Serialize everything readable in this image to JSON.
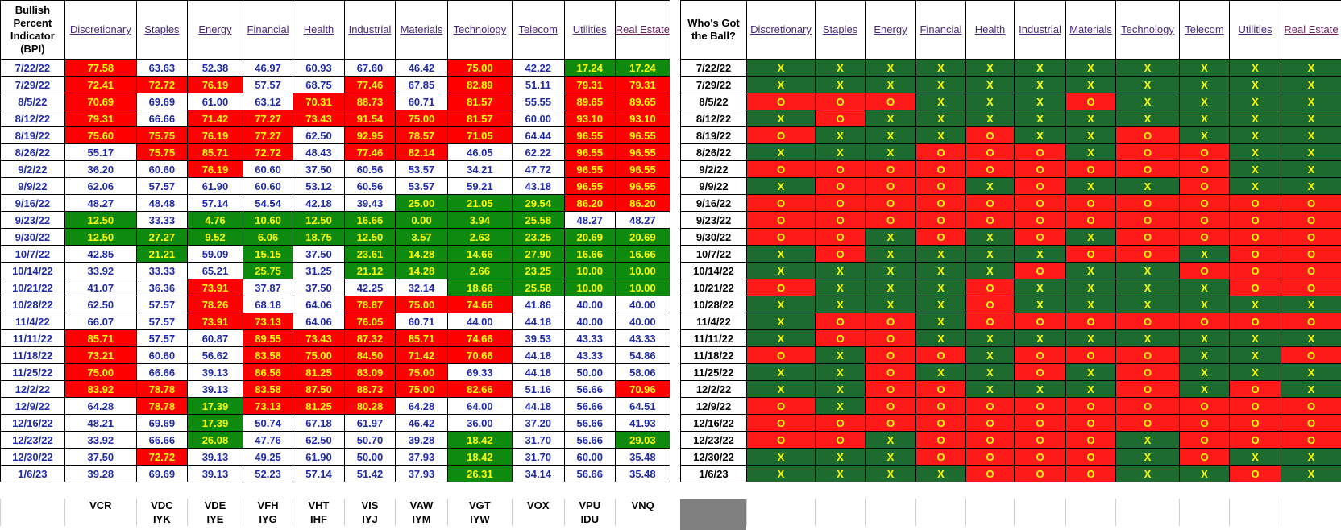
{
  "header": {
    "corner_title": "Bullish Percent Indicator (BPI)",
    "ball_title": "Who's Got the Ball?"
  },
  "sectors": [
    "Discretionary",
    "Staples",
    "Energy",
    "Financial",
    "Health",
    "Industrial",
    "Materials",
    "Technology",
    "Telecom",
    "Utilities",
    "Real Estate"
  ],
  "rows": [
    {
      "date": "7/22/22",
      "values": [
        "77.58",
        "63.63",
        "52.38",
        "46.97",
        "60.93",
        "67.60",
        "46.42",
        "75.00",
        "42.22",
        "17.24",
        "17.24"
      ],
      "colors": [
        "r",
        "w",
        "w",
        "w",
        "w",
        "w",
        "w",
        "r",
        "w",
        "g",
        "g"
      ],
      "marks": [
        "X",
        "X",
        "X",
        "X",
        "X",
        "X",
        "X",
        "X",
        "X",
        "X",
        "X"
      ]
    },
    {
      "date": "7/29/22",
      "values": [
        "72.41",
        "72.72",
        "76.19",
        "57.57",
        "68.75",
        "77.46",
        "67.85",
        "82.89",
        "51.11",
        "79.31",
        "79.31"
      ],
      "colors": [
        "r",
        "r",
        "r",
        "w",
        "w",
        "r",
        "w",
        "r",
        "w",
        "r",
        "r"
      ],
      "marks": [
        "X",
        "X",
        "X",
        "X",
        "X",
        "X",
        "X",
        "X",
        "X",
        "X",
        "X"
      ]
    },
    {
      "date": "8/5/22",
      "values": [
        "70.69",
        "69.69",
        "61.00",
        "63.12",
        "70.31",
        "88.73",
        "60.71",
        "81.57",
        "55.55",
        "89.65",
        "89.65"
      ],
      "colors": [
        "r",
        "w",
        "w",
        "w",
        "r",
        "r",
        "w",
        "r",
        "w",
        "r",
        "r"
      ],
      "marks": [
        "O",
        "O",
        "O",
        "X",
        "X",
        "X",
        "O",
        "X",
        "X",
        "X",
        "X"
      ]
    },
    {
      "date": "8/12/22",
      "values": [
        "79.31",
        "66.66",
        "71.42",
        "77.27",
        "73.43",
        "91.54",
        "75.00",
        "81.57",
        "60.00",
        "93.10",
        "93.10"
      ],
      "colors": [
        "r",
        "w",
        "r",
        "r",
        "r",
        "r",
        "r",
        "r",
        "w",
        "r",
        "r"
      ],
      "marks": [
        "X",
        "O",
        "X",
        "X",
        "X",
        "X",
        "X",
        "X",
        "X",
        "X",
        "X"
      ]
    },
    {
      "date": "8/19/22",
      "values": [
        "75.60",
        "75.75",
        "76.19",
        "77.27",
        "62.50",
        "92.95",
        "78.57",
        "71.05",
        "64.44",
        "96.55",
        "96.55"
      ],
      "colors": [
        "r",
        "r",
        "r",
        "r",
        "w",
        "r",
        "r",
        "r",
        "w",
        "r",
        "r"
      ],
      "marks": [
        "O",
        "X",
        "X",
        "X",
        "O",
        "X",
        "X",
        "O",
        "X",
        "X",
        "X"
      ]
    },
    {
      "date": "8/26/22",
      "values": [
        "55.17",
        "75.75",
        "85.71",
        "72.72",
        "48.43",
        "77.46",
        "82.14",
        "46.05",
        "62.22",
        "96.55",
        "96.55"
      ],
      "colors": [
        "w",
        "r",
        "r",
        "r",
        "w",
        "r",
        "r",
        "w",
        "w",
        "r",
        "r"
      ],
      "marks": [
        "X",
        "X",
        "X",
        "O",
        "O",
        "O",
        "X",
        "O",
        "O",
        "X",
        "X"
      ]
    },
    {
      "date": "9/2/22",
      "values": [
        "36.20",
        "60.60",
        "76.19",
        "60.60",
        "37.50",
        "60.56",
        "53.57",
        "34.21",
        "47.72",
        "96.55",
        "96.55"
      ],
      "colors": [
        "w",
        "w",
        "r",
        "w",
        "w",
        "w",
        "w",
        "w",
        "w",
        "r",
        "r"
      ],
      "marks": [
        "O",
        "O",
        "O",
        "O",
        "O",
        "O",
        "O",
        "O",
        "O",
        "X",
        "X"
      ]
    },
    {
      "date": "9/9/22",
      "values": [
        "62.06",
        "57.57",
        "61.90",
        "60.60",
        "53.12",
        "60.56",
        "53.57",
        "59.21",
        "43.18",
        "96.55",
        "96.55"
      ],
      "colors": [
        "w",
        "w",
        "w",
        "w",
        "w",
        "w",
        "w",
        "w",
        "w",
        "r",
        "r"
      ],
      "marks": [
        "X",
        "O",
        "O",
        "O",
        "X",
        "O",
        "X",
        "X",
        "O",
        "X",
        "X"
      ]
    },
    {
      "date": "9/16/22",
      "values": [
        "48.27",
        "48.48",
        "57.14",
        "54.54",
        "42.18",
        "39.43",
        "25.00",
        "21.05",
        "29.54",
        "86.20",
        "86.20"
      ],
      "colors": [
        "w",
        "w",
        "w",
        "w",
        "w",
        "w",
        "g",
        "g",
        "g",
        "r",
        "r"
      ],
      "marks": [
        "O",
        "O",
        "O",
        "O",
        "O",
        "O",
        "O",
        "O",
        "O",
        "O",
        "O"
      ]
    },
    {
      "date": "9/23/22",
      "values": [
        "12.50",
        "33.33",
        "4.76",
        "10.60",
        "12.50",
        "16.66",
        "0.00",
        "3.94",
        "25.58",
        "48.27",
        "48.27"
      ],
      "colors": [
        "g",
        "w",
        "g",
        "g",
        "g",
        "g",
        "g",
        "g",
        "g",
        "w",
        "w"
      ],
      "marks": [
        "O",
        "O",
        "O",
        "O",
        "O",
        "O",
        "O",
        "O",
        "O",
        "O",
        "O"
      ]
    },
    {
      "date": "9/30/22",
      "values": [
        "12.50",
        "27.27",
        "9.52",
        "6.06",
        "18.75",
        "12.50",
        "3.57",
        "2.63",
        "23.25",
        "20.69",
        "20.69"
      ],
      "colors": [
        "g",
        "g",
        "g",
        "g",
        "g",
        "g",
        "g",
        "g",
        "g",
        "g",
        "g"
      ],
      "marks": [
        "O",
        "O",
        "X",
        "O",
        "X",
        "O",
        "X",
        "O",
        "O",
        "O",
        "O"
      ]
    },
    {
      "date": "10/7/22",
      "values": [
        "42.85",
        "21.21",
        "59.09",
        "15.15",
        "37.50",
        "23.61",
        "14.28",
        "14.66",
        "27.90",
        "16.66",
        "16.66"
      ],
      "colors": [
        "w",
        "g",
        "w",
        "g",
        "w",
        "g",
        "g",
        "g",
        "g",
        "g",
        "g"
      ],
      "marks": [
        "X",
        "O",
        "X",
        "X",
        "X",
        "X",
        "O",
        "O",
        "X",
        "O",
        "O"
      ]
    },
    {
      "date": "10/14/22",
      "values": [
        "33.92",
        "33.33",
        "65.21",
        "25.75",
        "31.25",
        "21.12",
        "14.28",
        "2.66",
        "23.25",
        "10.00",
        "10.00"
      ],
      "colors": [
        "w",
        "w",
        "w",
        "g",
        "w",
        "g",
        "g",
        "g",
        "g",
        "g",
        "g"
      ],
      "marks": [
        "X",
        "X",
        "X",
        "X",
        "X",
        "O",
        "X",
        "X",
        "O",
        "O",
        "O"
      ]
    },
    {
      "date": "10/21/22",
      "values": [
        "41.07",
        "36.36",
        "73.91",
        "37.87",
        "37.50",
        "42.25",
        "32.14",
        "18.66",
        "25.58",
        "10.00",
        "10.00"
      ],
      "colors": [
        "w",
        "w",
        "r",
        "w",
        "w",
        "w",
        "w",
        "g",
        "g",
        "g",
        "g"
      ],
      "marks": [
        "O",
        "X",
        "X",
        "X",
        "O",
        "X",
        "X",
        "X",
        "X",
        "O",
        "O"
      ]
    },
    {
      "date": "10/28/22",
      "values": [
        "62.50",
        "57.57",
        "78.26",
        "68.18",
        "64.06",
        "78.87",
        "75.00",
        "74.66",
        "41.86",
        "40.00",
        "40.00"
      ],
      "colors": [
        "w",
        "w",
        "r",
        "w",
        "w",
        "r",
        "r",
        "r",
        "w",
        "w",
        "w"
      ],
      "marks": [
        "X",
        "X",
        "X",
        "X",
        "O",
        "X",
        "X",
        "X",
        "X",
        "X",
        "X"
      ]
    },
    {
      "date": "11/4/22",
      "values": [
        "66.07",
        "57.57",
        "73.91",
        "73.13",
        "64.06",
        "76.05",
        "60.71",
        "44.00",
        "44.18",
        "40.00",
        "40.00"
      ],
      "colors": [
        "w",
        "w",
        "r",
        "r",
        "w",
        "r",
        "w",
        "w",
        "w",
        "w",
        "w"
      ],
      "marks": [
        "X",
        "O",
        "O",
        "X",
        "O",
        "O",
        "O",
        "O",
        "O",
        "O",
        "O"
      ]
    },
    {
      "date": "11/11/22",
      "values": [
        "85.71",
        "57.57",
        "60.87",
        "89.55",
        "73.43",
        "87.32",
        "85.71",
        "74.66",
        "39.53",
        "43.33",
        "43.33"
      ],
      "colors": [
        "r",
        "w",
        "w",
        "r",
        "r",
        "r",
        "r",
        "r",
        "w",
        "w",
        "w"
      ],
      "marks": [
        "X",
        "O",
        "O",
        "X",
        "X",
        "X",
        "X",
        "X",
        "X",
        "X",
        "X"
      ]
    },
    {
      "date": "11/18/22",
      "values": [
        "73.21",
        "60.60",
        "56.62",
        "83.58",
        "75.00",
        "84.50",
        "71.42",
        "70.66",
        "44.18",
        "43.33",
        "54.86"
      ],
      "colors": [
        "r",
        "w",
        "w",
        "r",
        "r",
        "r",
        "r",
        "r",
        "w",
        "w",
        "w"
      ],
      "marks": [
        "O",
        "X",
        "O",
        "O",
        "X",
        "O",
        "O",
        "O",
        "X",
        "X",
        "O"
      ]
    },
    {
      "date": "11/25/22",
      "values": [
        "75.00",
        "66.66",
        "39.13",
        "86.56",
        "81.25",
        "83.09",
        "75.00",
        "69.33",
        "44.18",
        "50.00",
        "58.06"
      ],
      "colors": [
        "r",
        "w",
        "w",
        "r",
        "r",
        "r",
        "r",
        "w",
        "w",
        "w",
        "w"
      ],
      "marks": [
        "X",
        "X",
        "O",
        "X",
        "X",
        "O",
        "X",
        "O",
        "X",
        "X",
        "X"
      ]
    },
    {
      "date": "12/2/22",
      "values": [
        "83.92",
        "78.78",
        "39.13",
        "83.58",
        "87.50",
        "88.73",
        "75.00",
        "82.66",
        "51.16",
        "56.66",
        "70.96"
      ],
      "colors": [
        "r",
        "r",
        "w",
        "r",
        "r",
        "r",
        "r",
        "r",
        "w",
        "w",
        "r"
      ],
      "marks": [
        "X",
        "X",
        "O",
        "O",
        "X",
        "X",
        "X",
        "O",
        "X",
        "O",
        "X"
      ]
    },
    {
      "date": "12/9/22",
      "values": [
        "64.28",
        "78.78",
        "17.39",
        "73.13",
        "81.25",
        "80.28",
        "64.28",
        "64.00",
        "44.18",
        "56.66",
        "64.51"
      ],
      "colors": [
        "w",
        "r",
        "g",
        "r",
        "r",
        "r",
        "w",
        "w",
        "w",
        "w",
        "w"
      ],
      "marks": [
        "O",
        "X",
        "O",
        "O",
        "O",
        "O",
        "O",
        "O",
        "O",
        "O",
        "O"
      ]
    },
    {
      "date": "12/16/22",
      "values": [
        "48.21",
        "69.69",
        "17.39",
        "50.74",
        "67.18",
        "61.97",
        "46.42",
        "36.00",
        "37.20",
        "56.66",
        "41.93"
      ],
      "colors": [
        "w",
        "w",
        "g",
        "w",
        "w",
        "w",
        "w",
        "w",
        "w",
        "w",
        "w"
      ],
      "marks": [
        "O",
        "O",
        "O",
        "O",
        "O",
        "O",
        "O",
        "O",
        "O",
        "O",
        "O"
      ]
    },
    {
      "date": "12/23/22",
      "values": [
        "33.92",
        "66.66",
        "26.08",
        "47.76",
        "62.50",
        "50.70",
        "39.28",
        "18.42",
        "31.70",
        "56.66",
        "29.03"
      ],
      "colors": [
        "w",
        "w",
        "g",
        "w",
        "w",
        "w",
        "w",
        "g",
        "w",
        "w",
        "g"
      ],
      "marks": [
        "O",
        "O",
        "X",
        "O",
        "O",
        "O",
        "O",
        "X",
        "O",
        "O",
        "O"
      ]
    },
    {
      "date": "12/30/22",
      "values": [
        "37.50",
        "72.72",
        "39.13",
        "49.25",
        "61.90",
        "50.00",
        "37.93",
        "18.42",
        "31.70",
        "60.00",
        "35.48"
      ],
      "colors": [
        "w",
        "r",
        "w",
        "w",
        "w",
        "w",
        "w",
        "g",
        "w",
        "w",
        "w"
      ],
      "marks": [
        "X",
        "X",
        "X",
        "O",
        "O",
        "O",
        "O",
        "X",
        "O",
        "X",
        "X"
      ]
    },
    {
      "date": "1/6/23",
      "values": [
        "39.28",
        "69.69",
        "39.13",
        "52.23",
        "57.14",
        "51.42",
        "37.93",
        "26.31",
        "34.14",
        "56.66",
        "35.48"
      ],
      "colors": [
        "w",
        "w",
        "w",
        "w",
        "w",
        "w",
        "w",
        "g",
        "w",
        "w",
        "w"
      ],
      "marks": [
        "X",
        "X",
        "X",
        "X",
        "O",
        "O",
        "O",
        "X",
        "X",
        "O",
        "X"
      ]
    }
  ],
  "tickers_primary": [
    "VCR",
    "VDC",
    "VDE",
    "VFH",
    "VHT",
    "VIS",
    "VAW",
    "VGT",
    "VOX",
    "VPU",
    "VNQ"
  ],
  "tickers_secondary": [
    "",
    "IYK",
    "IYE",
    "IYG",
    "IHF",
    "IYJ",
    "IYM",
    "IYW",
    "",
    "IDU",
    ""
  ],
  "colors": {
    "red": "#ff0000",
    "green": "#0e8a0e",
    "dark_green": "#1e6b30",
    "value_text": "#1f2aa6",
    "highlight_text": "#ffff00"
  }
}
